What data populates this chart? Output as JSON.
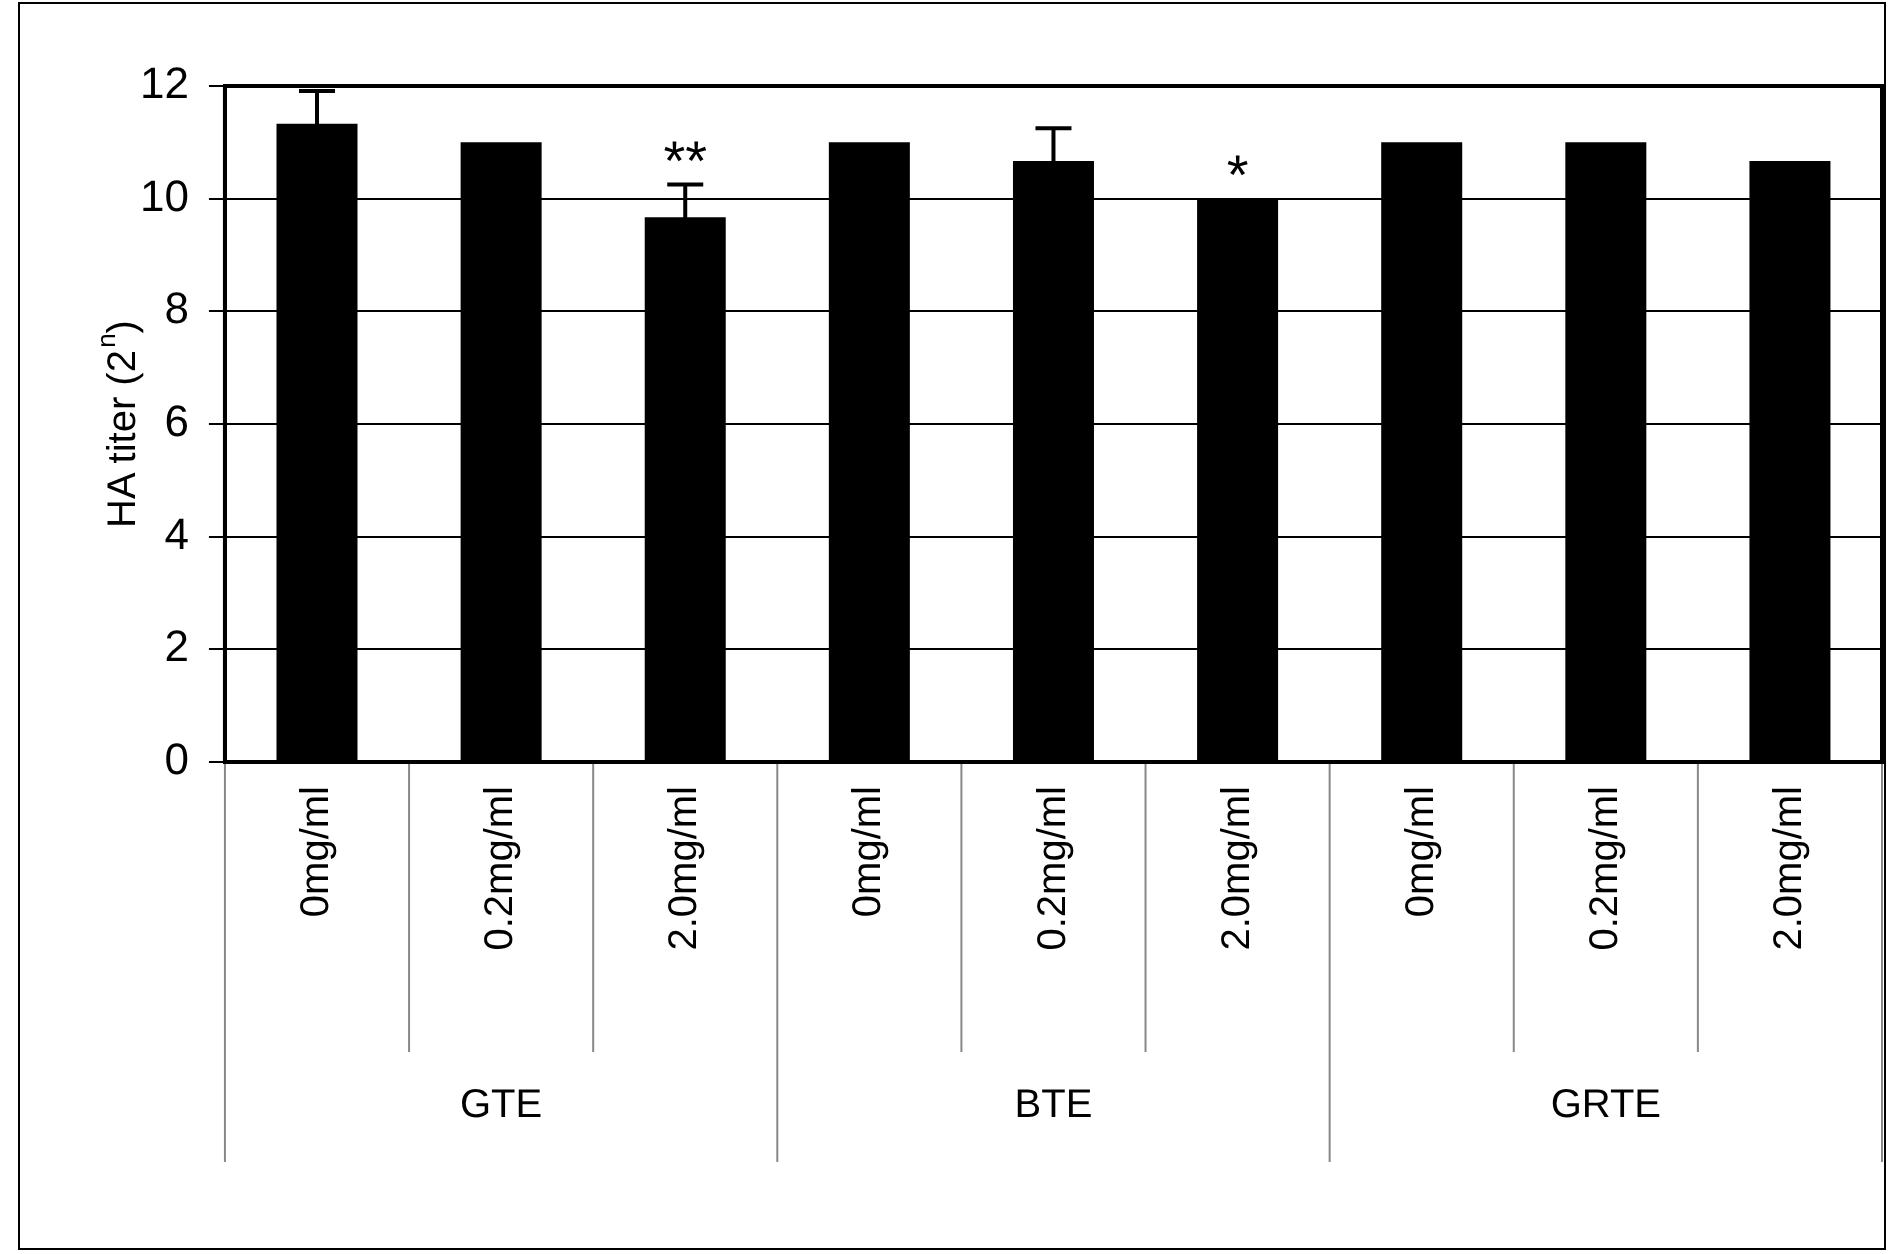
{
  "chart_data": {
    "type": "bar",
    "ylabel": "HA titer (2$^{n}$)",
    "categories": [
      "0mg/ml",
      "0.2mg/ml",
      "2.0mg/ml",
      "0mg/ml",
      "0.2mg/ml",
      "2.0mg/ml",
      "0mg/ml",
      "0.2mg/ml",
      "2.0mg/ml"
    ],
    "values": [
      11.33,
      11,
      9.67,
      11,
      10.67,
      10,
      11,
      11,
      10.67
    ],
    "errors": [
      0.58,
      null,
      0.58,
      null,
      0.58,
      null,
      null,
      null,
      null
    ],
    "value_labels": [
      null,
      null,
      "**",
      null,
      null,
      "*",
      null,
      null,
      null
    ],
    "annotations": [
      "GTE",
      "BTE",
      "GRTE"
    ],
    "color": "#000000",
    "ylim": [
      0,
      12
    ],
    "yticks": [
      0,
      2,
      4,
      6,
      8,
      10,
      12
    ],
    "grid": "y",
    "legend": false
  }
}
